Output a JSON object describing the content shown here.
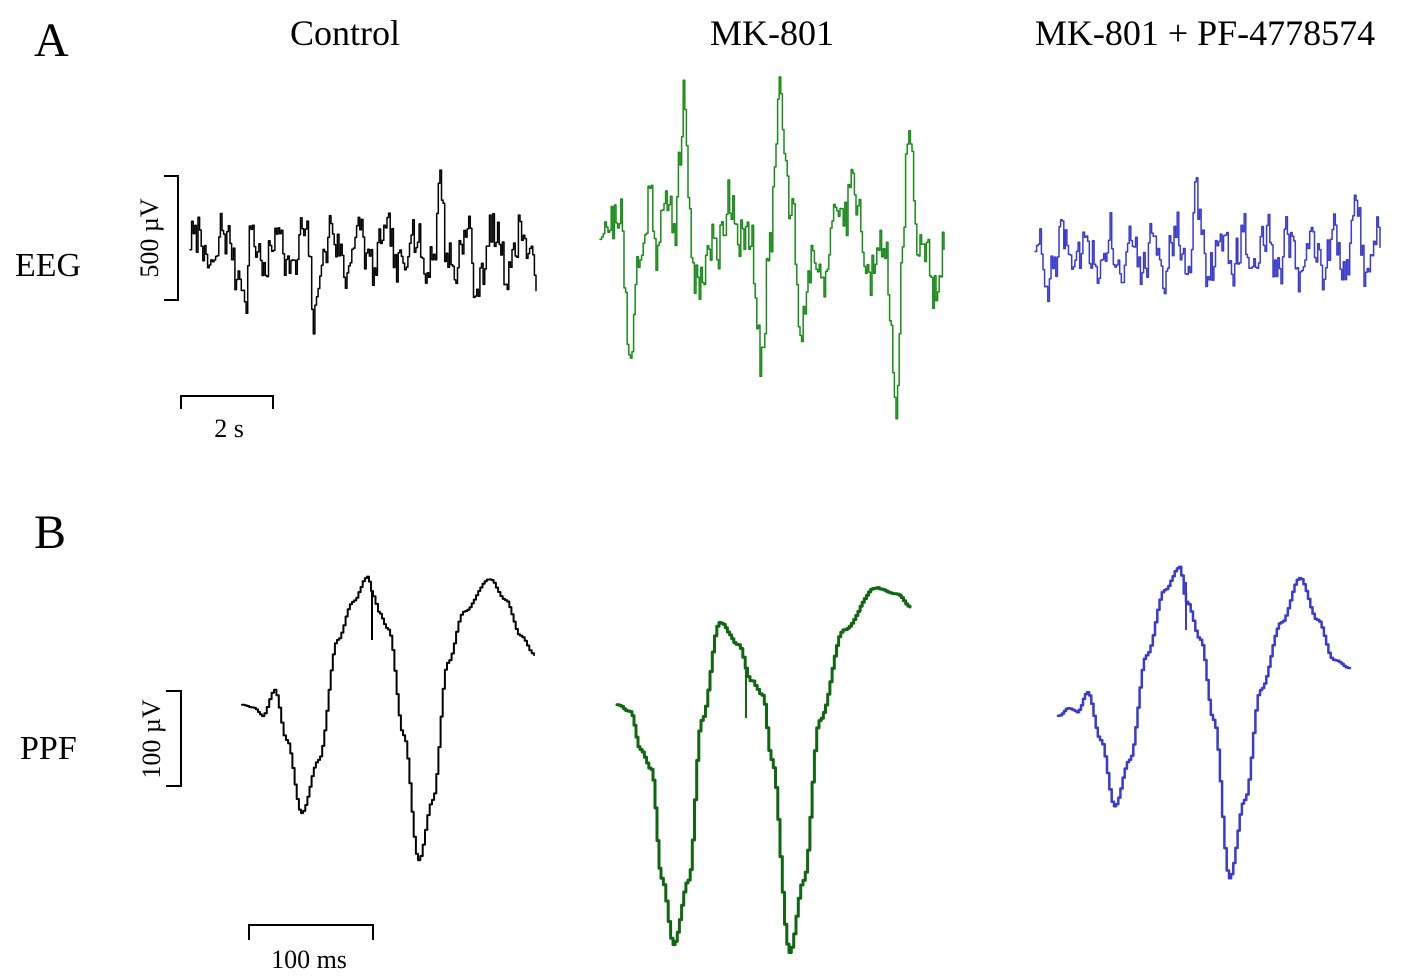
{
  "panels": {
    "a": {
      "letter": "A"
    },
    "b": {
      "letter": "B"
    }
  },
  "columns": [
    {
      "title": "Control",
      "color": "#000000"
    },
    {
      "title": "MK-801",
      "color": "#1a8a1a"
    },
    {
      "title": "MK-801 + PF-4778574",
      "color": "#3a3acc"
    }
  ],
  "rows": {
    "eeg": {
      "label": "EEG",
      "amp_scale": "500 µV",
      "time_scale": "2 s"
    },
    "ppf": {
      "label": "PPF",
      "amp_scale": "100 µV",
      "time_scale": "100 ms",
      "trace_color_mk801": "#116611"
    }
  }
}
